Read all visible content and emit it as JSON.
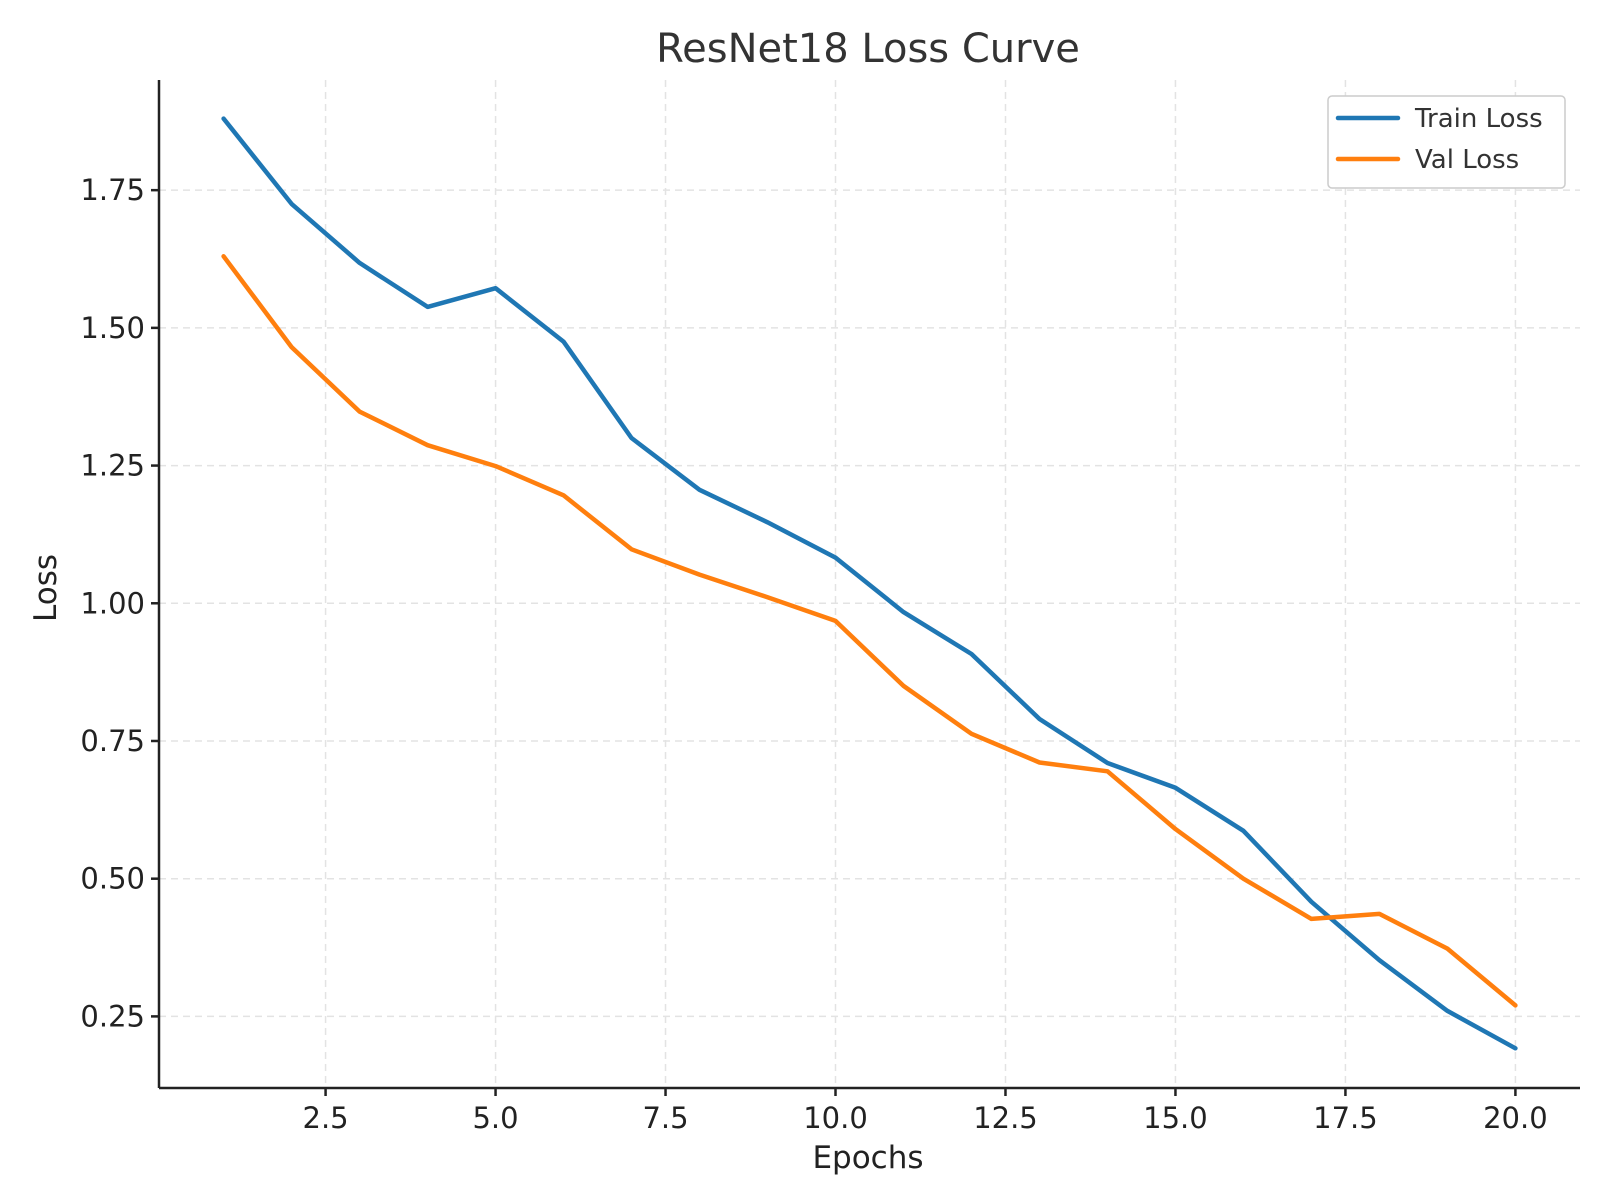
{
  "chart_data": {
    "type": "line",
    "title": "ResNet18 Loss Curve",
    "xlabel": "Epochs",
    "ylabel": "Loss",
    "x": [
      1,
      2,
      3,
      4,
      5,
      6,
      7,
      8,
      9,
      10,
      11,
      12,
      13,
      14,
      15,
      16,
      17,
      18,
      19,
      20
    ],
    "series": [
      {
        "name": "Train Loss",
        "color": "#1f77b4",
        "values": [
          1.88,
          1.725,
          1.618,
          1.538,
          1.572,
          1.475,
          1.3,
          1.206,
          1.147,
          1.083,
          0.984,
          0.908,
          0.79,
          0.71,
          0.665,
          0.587,
          0.458,
          0.352,
          0.26,
          0.192
        ]
      },
      {
        "name": "Val Loss",
        "color": "#ff7f0e",
        "values": [
          1.63,
          1.465,
          1.348,
          1.287,
          1.249,
          1.196,
          1.098,
          1.052,
          1.011,
          0.968,
          0.85,
          0.763,
          0.711,
          0.695,
          0.59,
          0.5,
          0.427,
          0.436,
          0.373,
          0.27
        ]
      }
    ],
    "xlim": [
      0.05,
      20.95
    ],
    "ylim": [
      0.12,
      1.95
    ],
    "xticks": [
      2.5,
      5.0,
      7.5,
      10.0,
      12.5,
      15.0,
      17.5,
      20.0
    ],
    "xtick_labels": [
      "2.5",
      "5.0",
      "7.5",
      "10.0",
      "12.5",
      "15.0",
      "17.5",
      "20.0"
    ],
    "yticks": [
      0.25,
      0.5,
      0.75,
      1.0,
      1.25,
      1.5,
      1.75
    ],
    "ytick_labels": [
      "0.25",
      "0.50",
      "0.75",
      "1.00",
      "1.25",
      "1.50",
      "1.75"
    ],
    "grid": true,
    "legend_position": "top-right"
  }
}
